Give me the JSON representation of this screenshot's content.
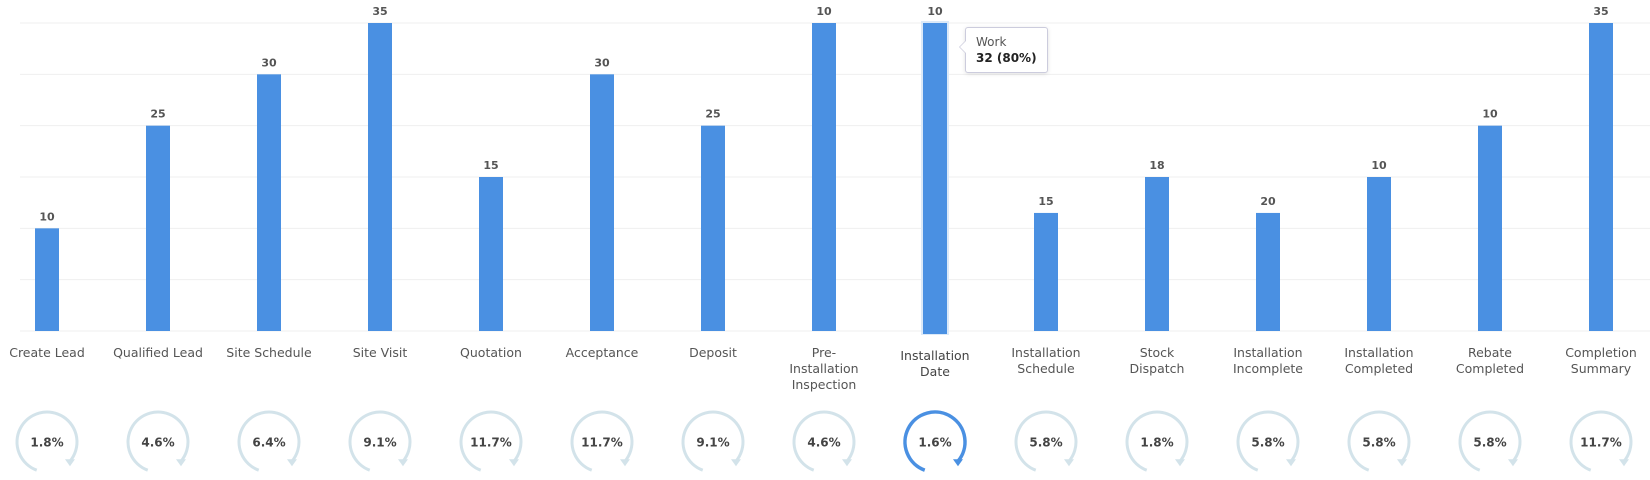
{
  "chart_data": {
    "type": "bar",
    "categories": [
      "Create Lead",
      "Qualified Lead",
      "Site Schedule",
      "Site Visit",
      "Quotation",
      "Acceptance",
      "Deposit",
      "Pre- Installation Inspection",
      "Installation Date",
      "Installation Schedule",
      "Stock Dispatch",
      "Installation Incomplete",
      "Installation Completed",
      "Rebate Completed",
      "Completion Summary"
    ],
    "values": [
      2,
      4,
      5,
      6,
      3,
      5,
      4,
      6,
      6,
      2.3,
      3,
      2.3,
      3,
      4,
      6
    ],
    "counts": [
      "10",
      "25",
      "30",
      "35",
      "15",
      "30",
      "25",
      "10",
      "10",
      "15",
      "18",
      "20",
      "10",
      "10",
      "35"
    ],
    "rates": [
      "1.8%",
      "4.6%",
      "6.4%",
      "9.1%",
      "11.7%",
      "11.7%",
      "9.1%",
      "4.6%",
      "1.6%",
      "5.8%",
      "1.8%",
      "5.8%",
      "5.8%",
      "5.8%",
      "11.7%"
    ],
    "color": "#4a90e2",
    "ylim": [
      0,
      6
    ],
    "yticks": [
      0,
      1,
      2,
      3,
      4,
      5,
      6
    ],
    "grid": true,
    "tooltip": {
      "title": "Work",
      "text": "32 (80%)"
    }
  }
}
